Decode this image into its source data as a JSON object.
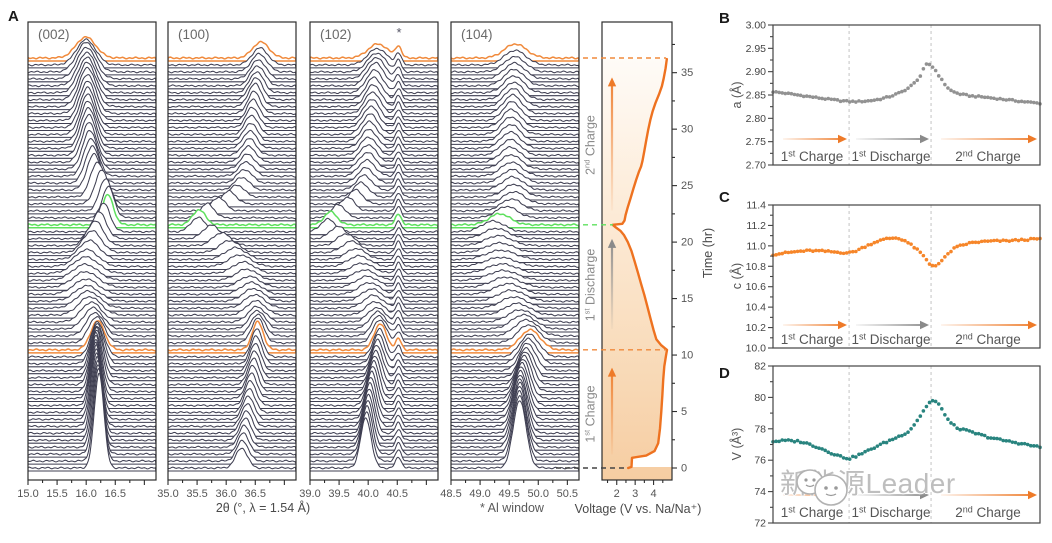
{
  "panel_a": {
    "label": "A",
    "xlabel": "2θ (°, λ = 1.54 Å)",
    "al_window_note": "* Al window",
    "asterisk": "*",
    "trace_color": "#3f3f52",
    "highlight_orange": "#f08a3c",
    "highlight_green": "#5ee05e",
    "dash_black": "#444444"
  },
  "phases": [
    {
      "num": "1",
      "sup": "st",
      "word": "Charge",
      "color": "#ee7a28"
    },
    {
      "num": "1",
      "sup": "st",
      "word": "Discharge",
      "color": "#8a8a8a"
    },
    {
      "num": "2",
      "sup": "nd",
      "word": "Charge",
      "color": "#ee7a28"
    }
  ],
  "watermark": {
    "text": "新能源Leader"
  },
  "chart_data": [
    {
      "id": "xrd_waterfall",
      "type": "line",
      "n_traces": 60,
      "time_range_hr": [
        0,
        36.3
      ],
      "highlight_traces": {
        "orange_1st_charge_end_hr": 10.46,
        "green_1st_discharge_end_hr": 21.53,
        "orange_2nd_charge_end_hr": 36.3
      },
      "panels": [
        {
          "hkl": "(002)",
          "miller": [
            0,
            0,
            2
          ],
          "two_theta_range": [
            15.0,
            17.2
          ],
          "tick_labels": [
            "15.0",
            "15.5",
            "16.0",
            "16.5"
          ],
          "amp_profile": [
            [
              0,
              95
            ],
            [
              2,
              86
            ],
            [
              4,
              76
            ],
            [
              6,
              64
            ],
            [
              8,
              50
            ],
            [
              9.5,
              38
            ],
            [
              10.46,
              29
            ],
            [
              12,
              22
            ],
            [
              15,
              15
            ],
            [
              18,
              17
            ],
            [
              20,
              26
            ],
            [
              21.53,
              30
            ],
            [
              24,
              35
            ],
            [
              28,
              41
            ],
            [
              32,
              39
            ],
            [
              35,
              30
            ],
            [
              36.3,
              21
            ]
          ],
          "width_profile": [
            [
              0,
              0.082
            ],
            [
              6,
              0.092
            ],
            [
              10.46,
              0.12
            ],
            [
              14,
              0.2
            ],
            [
              17,
              0.22
            ],
            [
              20,
              0.13
            ],
            [
              21.53,
              0.095
            ],
            [
              24,
              0.12
            ],
            [
              30,
              0.13
            ],
            [
              36.3,
              0.17
            ]
          ]
        },
        {
          "hkl": "(100)",
          "miller": [
            1,
            0,
            0
          ],
          "two_theta_range": [
            35.0,
            37.2
          ],
          "tick_labels": [
            "35.0",
            "35.5",
            "36.0",
            "36.5"
          ],
          "amp_profile": [
            [
              0,
              20
            ],
            [
              5,
              24
            ],
            [
              9,
              28
            ],
            [
              10.46,
              28
            ],
            [
              13,
              15
            ],
            [
              16,
              11
            ],
            [
              19,
              12
            ],
            [
              21.53,
              15
            ],
            [
              24,
              12
            ],
            [
              28,
              17
            ],
            [
              32,
              23
            ],
            [
              36.3,
              16
            ]
          ],
          "width_profile": [
            [
              0,
              0.1
            ],
            [
              8,
              0.095
            ],
            [
              10.46,
              0.095
            ],
            [
              14,
              0.17
            ],
            [
              18,
              0.19
            ],
            [
              21.53,
              0.11
            ],
            [
              25,
              0.13
            ],
            [
              31,
              0.105
            ],
            [
              36.3,
              0.14
            ]
          ]
        },
        {
          "hkl": "(102)",
          "miller": [
            1,
            0,
            2
          ],
          "two_theta_range": [
            39.0,
            41.2
          ],
          "tick_labels": [
            "39.0",
            "39.5",
            "40.0",
            "40.5"
          ],
          "al_peak": {
            "center": 40.52,
            "amp": 11,
            "width": 0.05
          },
          "amp_profile": [
            [
              0,
              50
            ],
            [
              3,
              45
            ],
            [
              6,
              38
            ],
            [
              9,
              30
            ],
            [
              10.46,
              26
            ],
            [
              13,
              14
            ],
            [
              17,
              10
            ],
            [
              21.53,
              13
            ],
            [
              25,
              15
            ],
            [
              30,
              21
            ],
            [
              34,
              23
            ],
            [
              36.3,
              14
            ]
          ],
          "width_profile": [
            [
              0,
              0.09
            ],
            [
              6,
              0.095
            ],
            [
              10.46,
              0.105
            ],
            [
              13,
              0.15
            ],
            [
              17,
              0.2
            ],
            [
              21.53,
              0.11
            ],
            [
              26,
              0.14
            ],
            [
              32,
              0.13
            ],
            [
              36.3,
              0.17
            ]
          ]
        },
        {
          "hkl": "(104)",
          "miller": [
            1,
            0,
            4
          ],
          "two_theta_range": [
            48.5,
            50.7
          ],
          "tick_labels": [
            "48.5",
            "49.0",
            "49.5",
            "50.0",
            "50.5"
          ],
          "amp_profile": [
            [
              0,
              68
            ],
            [
              2,
              60
            ],
            [
              4,
              50
            ],
            [
              6,
              40
            ],
            [
              8,
              30
            ],
            [
              10.46,
              20
            ],
            [
              13,
              12
            ],
            [
              18,
              9
            ],
            [
              21.53,
              11
            ],
            [
              26,
              14
            ],
            [
              31,
              19
            ],
            [
              36.3,
              14
            ]
          ],
          "width_profile": [
            [
              0,
              0.11
            ],
            [
              8,
              0.13
            ],
            [
              12,
              0.2
            ],
            [
              18,
              0.26
            ],
            [
              21.53,
              0.18
            ],
            [
              26,
              0.18
            ],
            [
              31,
              0.15
            ],
            [
              36.3,
              0.19
            ]
          ]
        }
      ]
    },
    {
      "id": "voltage_time",
      "type": "line",
      "xlabel": "Voltage (V vs. Na/Na⁺)",
      "ylabel": "Time (hr)",
      "x_ticks": [
        "2",
        "3",
        "4"
      ],
      "x_range": [
        1.2,
        5.0
      ],
      "time_ticks": [
        "0",
        "5",
        "10",
        "15",
        "20",
        "25",
        "30",
        "35"
      ],
      "curve_color": "#ee7220",
      "fill_top": "#ffffff",
      "fill_bottom": "#f6cda2",
      "curve_V_t": [
        [
          2.62,
          0
        ],
        [
          2.8,
          0.1
        ],
        [
          2.83,
          0.9
        ],
        [
          3.6,
          1.1
        ],
        [
          4.05,
          1.5
        ],
        [
          4.25,
          2.2
        ],
        [
          4.35,
          3.5
        ],
        [
          4.42,
          5
        ],
        [
          4.48,
          6.5
        ],
        [
          4.52,
          7.8
        ],
        [
          4.58,
          9
        ],
        [
          4.68,
          10
        ],
        [
          4.73,
          10.46
        ],
        [
          4.4,
          10.9
        ],
        [
          4.15,
          11.4
        ],
        [
          4.0,
          12.2
        ],
        [
          3.82,
          13.3
        ],
        [
          3.65,
          14.4
        ],
        [
          3.5,
          15.3
        ],
        [
          3.32,
          16.3
        ],
        [
          3.15,
          17.3
        ],
        [
          2.97,
          18.3
        ],
        [
          2.8,
          19.2
        ],
        [
          2.6,
          20
        ],
        [
          2.4,
          20.6
        ],
        [
          2.2,
          21
        ],
        [
          1.95,
          21.3
        ],
        [
          1.78,
          21.53
        ],
        [
          2.3,
          21.62
        ],
        [
          2.42,
          21.9
        ],
        [
          2.48,
          22.4
        ],
        [
          2.6,
          23.1
        ],
        [
          2.75,
          23.9
        ],
        [
          2.9,
          24.7
        ],
        [
          3.05,
          25.5
        ],
        [
          3.2,
          26.2
        ],
        [
          3.32,
          26.7
        ],
        [
          3.4,
          27.2
        ],
        [
          3.5,
          28.1
        ],
        [
          3.6,
          29
        ],
        [
          3.7,
          29.9
        ],
        [
          3.82,
          30.8
        ],
        [
          3.95,
          31.6
        ],
        [
          4.1,
          32.3
        ],
        [
          4.3,
          33.1
        ],
        [
          4.45,
          33.8
        ],
        [
          4.55,
          34.5
        ],
        [
          4.65,
          35.4
        ],
        [
          4.72,
          36.2
        ]
      ]
    },
    {
      "id": "lattice_a",
      "panel_letter": "B",
      "type": "scatter",
      "ylabel": "a (Å)",
      "ylim": [
        2.7,
        3.0
      ],
      "ytick_labels": [
        "3.00",
        "2.95",
        "2.90",
        "2.85",
        "2.80",
        "2.75",
        "2.70"
      ],
      "color": "#8c8c8c",
      "phase_boundaries_frac": [
        0.285,
        0.592
      ],
      "points": [
        [
          0,
          2.857
        ],
        [
          0.05,
          2.8535
        ],
        [
          0.1,
          2.8495
        ],
        [
          0.15,
          2.8455
        ],
        [
          0.2,
          2.8415
        ],
        [
          0.25,
          2.838
        ],
        [
          0.285,
          2.836
        ],
        [
          0.32,
          2.836
        ],
        [
          0.36,
          2.8375
        ],
        [
          0.4,
          2.841
        ],
        [
          0.44,
          2.847
        ],
        [
          0.48,
          2.856
        ],
        [
          0.51,
          2.866
        ],
        [
          0.53,
          2.876
        ],
        [
          0.555,
          2.893
        ],
        [
          0.569,
          2.913
        ],
        [
          0.58,
          2.917
        ],
        [
          0.592,
          2.914
        ],
        [
          0.61,
          2.902
        ],
        [
          0.63,
          2.884
        ],
        [
          0.65,
          2.868
        ],
        [
          0.67,
          2.858
        ],
        [
          0.7,
          2.852
        ],
        [
          0.74,
          2.848
        ],
        [
          0.8,
          2.845
        ],
        [
          0.86,
          2.841
        ],
        [
          0.92,
          2.837
        ],
        [
          1,
          2.832
        ]
      ]
    },
    {
      "id": "lattice_c",
      "panel_letter": "C",
      "type": "scatter",
      "ylabel": "c (Å)",
      "ylim": [
        10.0,
        11.4
      ],
      "ytick_labels": [
        "11.4",
        "11.2",
        "11.0",
        "10.8",
        "10.6",
        "10.4",
        "10.2",
        "10.0"
      ],
      "color": "#f5801f",
      "phase_boundaries_frac": [
        0.285,
        0.592
      ],
      "points": [
        [
          0,
          10.915
        ],
        [
          0.05,
          10.932
        ],
        [
          0.1,
          10.947
        ],
        [
          0.14,
          10.953
        ],
        [
          0.18,
          10.95
        ],
        [
          0.23,
          10.94
        ],
        [
          0.27,
          10.932
        ],
        [
          0.285,
          10.932
        ],
        [
          0.31,
          10.95
        ],
        [
          0.35,
          11.0
        ],
        [
          0.39,
          11.045
        ],
        [
          0.43,
          11.072
        ],
        [
          0.46,
          11.078
        ],
        [
          0.49,
          11.058
        ],
        [
          0.52,
          11.005
        ],
        [
          0.55,
          10.94
        ],
        [
          0.57,
          10.88
        ],
        [
          0.585,
          10.825
        ],
        [
          0.6,
          10.805
        ],
        [
          0.615,
          10.815
        ],
        [
          0.635,
          10.86
        ],
        [
          0.655,
          10.92
        ],
        [
          0.675,
          10.97
        ],
        [
          0.7,
          11.0
        ],
        [
          0.74,
          11.03
        ],
        [
          0.78,
          11.04
        ],
        [
          0.83,
          11.048
        ],
        [
          0.88,
          11.05
        ],
        [
          0.93,
          11.058
        ],
        [
          1,
          11.07
        ]
      ]
    },
    {
      "id": "volume",
      "panel_letter": "D",
      "type": "scatter",
      "ylabel": "V (Å³)",
      "ylim": [
        72,
        82
      ],
      "ytick_labels": [
        "82",
        "80",
        "78",
        "76",
        "74",
        "72"
      ],
      "color": "#1e7d78",
      "phase_boundaries_frac": [
        0.285,
        0.592
      ],
      "points": [
        [
          0,
          77.2
        ],
        [
          0.05,
          77.25
        ],
        [
          0.1,
          77.2
        ],
        [
          0.14,
          77.0
        ],
        [
          0.18,
          76.75
        ],
        [
          0.22,
          76.45
        ],
        [
          0.26,
          76.2
        ],
        [
          0.285,
          76.1
        ],
        [
          0.31,
          76.25
        ],
        [
          0.35,
          76.55
        ],
        [
          0.39,
          76.9
        ],
        [
          0.43,
          77.2
        ],
        [
          0.47,
          77.5
        ],
        [
          0.51,
          77.85
        ],
        [
          0.53,
          78.3
        ],
        [
          0.555,
          78.9
        ],
        [
          0.575,
          79.45
        ],
        [
          0.59,
          79.75
        ],
        [
          0.605,
          79.8
        ],
        [
          0.62,
          79.55
        ],
        [
          0.64,
          79.05
        ],
        [
          0.655,
          78.6
        ],
        [
          0.67,
          78.3
        ],
        [
          0.69,
          78.05
        ],
        [
          0.72,
          77.9
        ],
        [
          0.76,
          77.7
        ],
        [
          0.8,
          77.5
        ],
        [
          0.85,
          77.3
        ],
        [
          0.9,
          77.15
        ],
        [
          0.95,
          77.0
        ],
        [
          1,
          76.82
        ]
      ]
    }
  ]
}
